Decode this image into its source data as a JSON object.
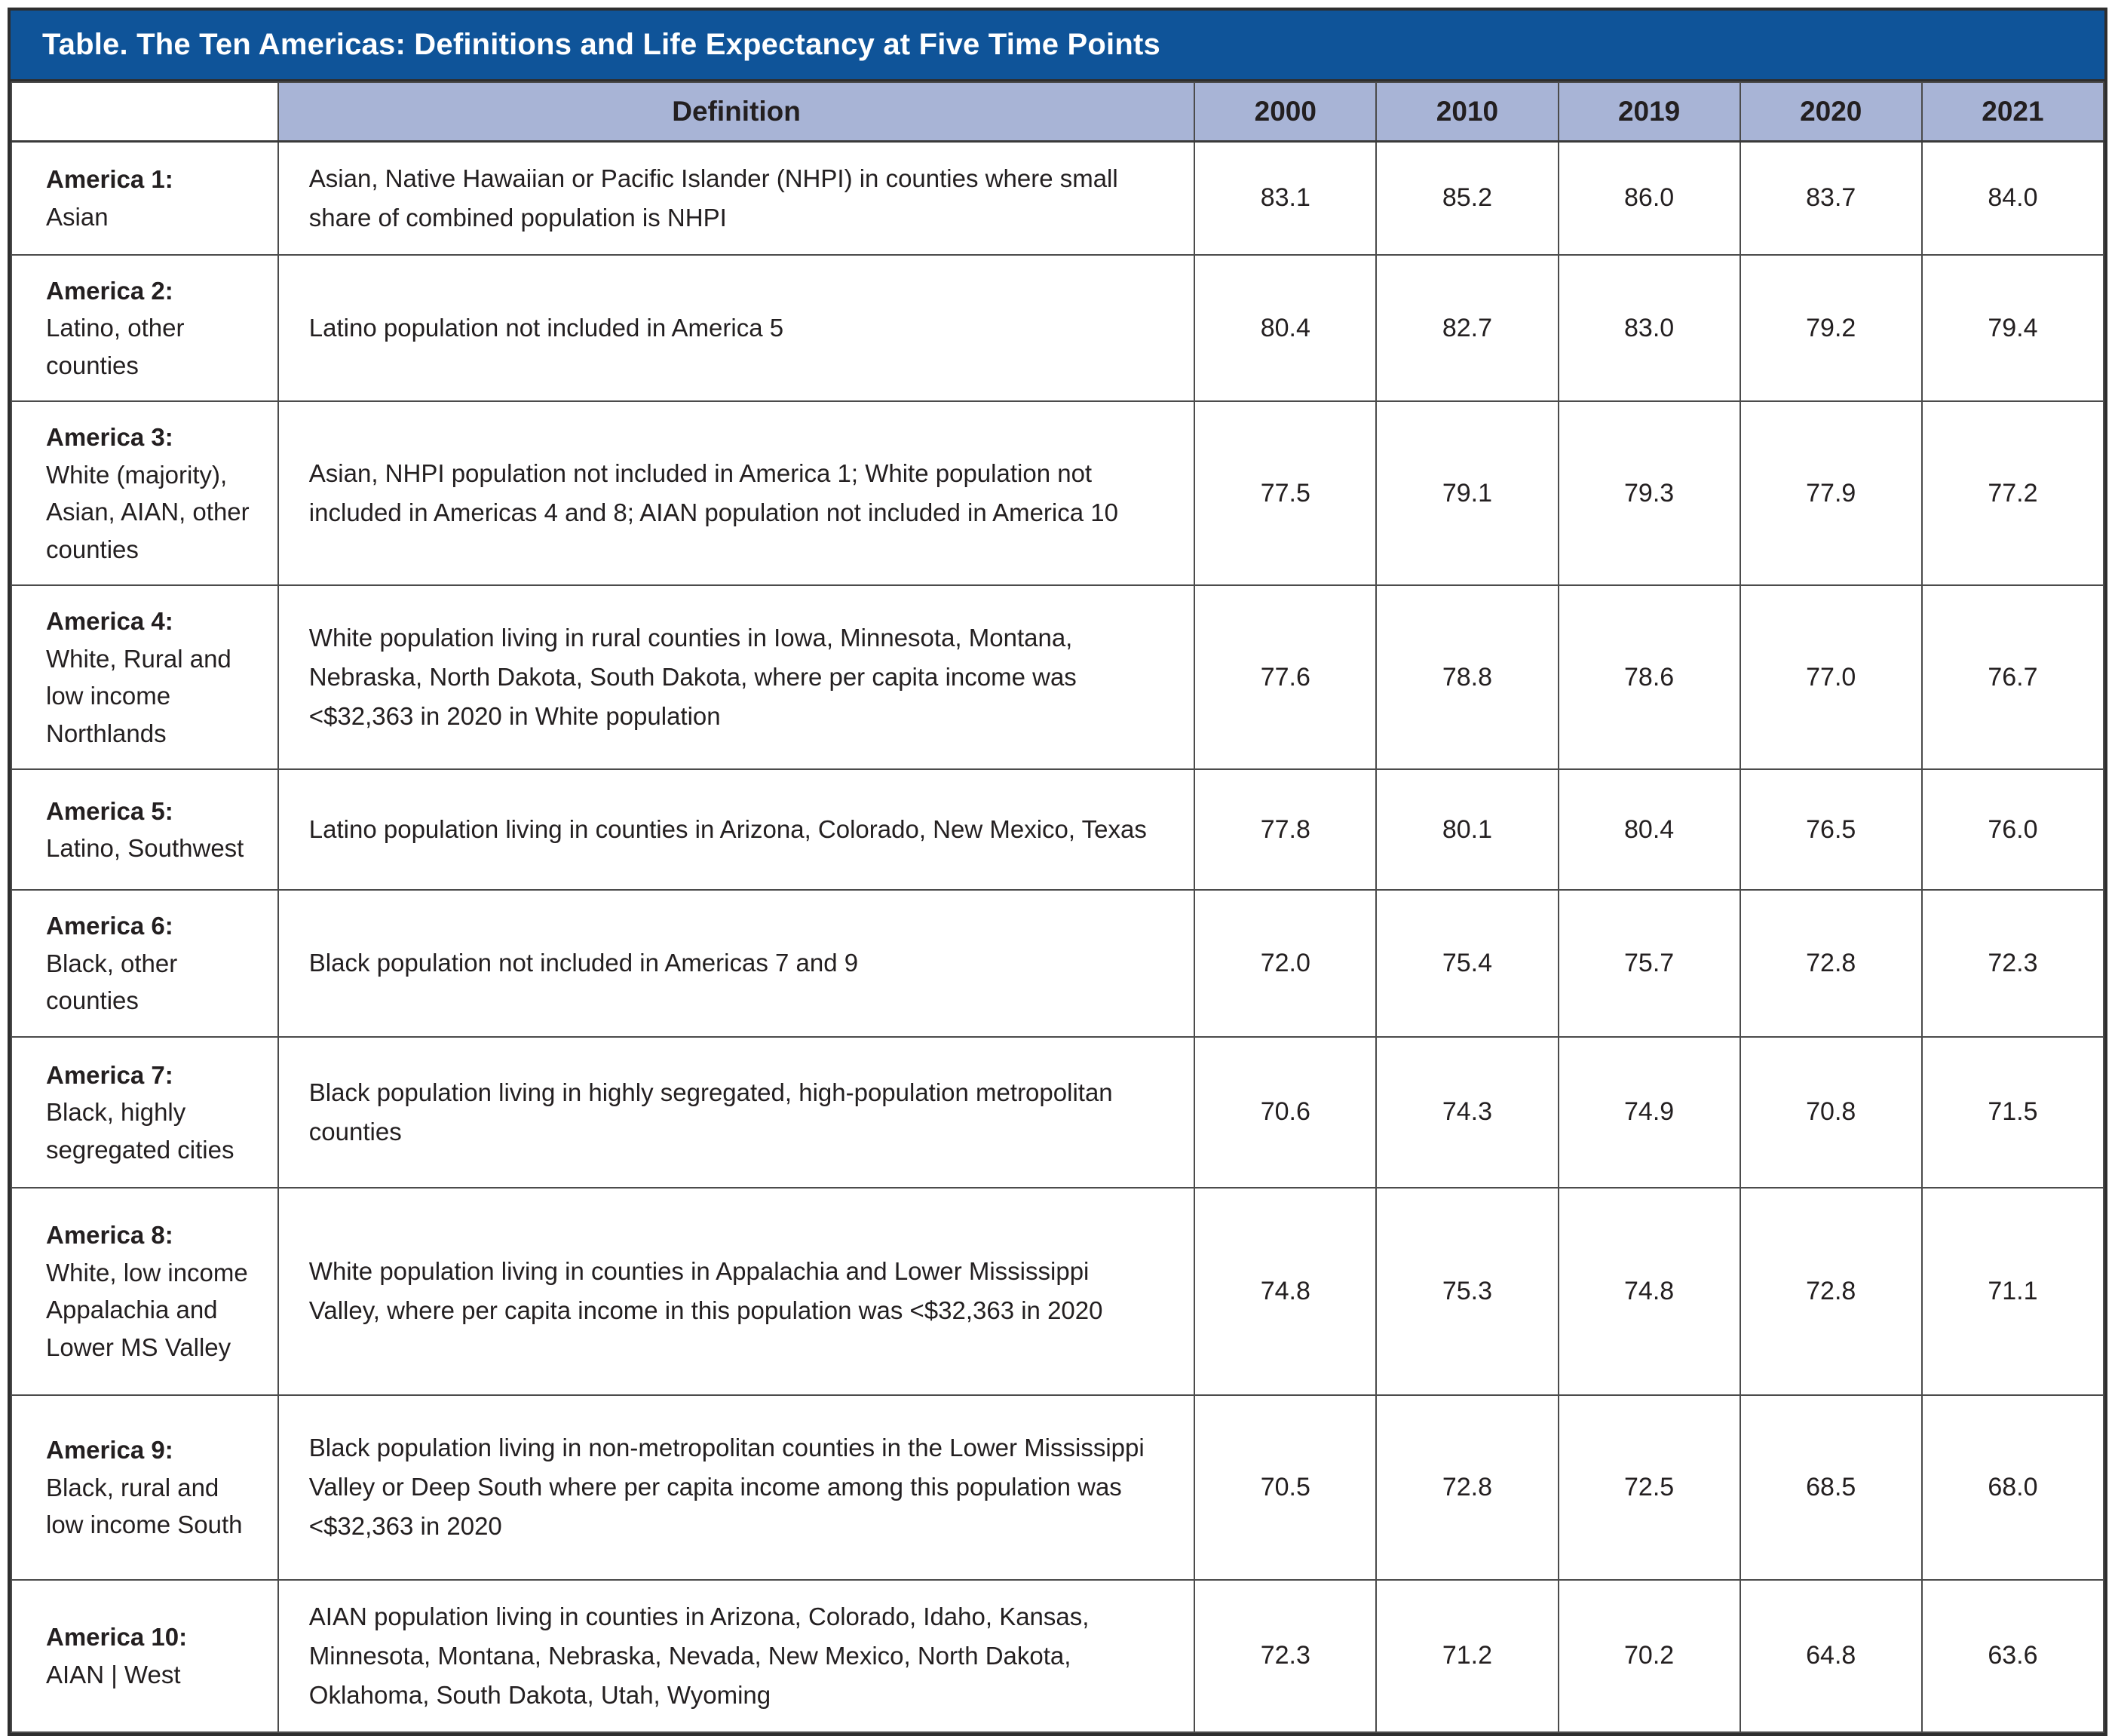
{
  "title": "Table. The Ten Americas: Definitions and Life Expectancy at Five Time Points",
  "header": {
    "definition_label": "Definition",
    "years": [
      "2000",
      "2010",
      "2019",
      "2020",
      "2021"
    ]
  },
  "colors": {
    "title_bg": "#0f5499",
    "title_text": "#ffffff",
    "header_bg": "#a8b4d6",
    "body_text": "#231f20",
    "border": "#4b4b4b"
  },
  "rows": [
    {
      "name_bold": "America 1:",
      "name_rest": "Asian",
      "definition": "Asian, Native Hawaiian or Pacific Islander (NHPI) in counties where small share of combined population is NHPI",
      "values": [
        "83.1",
        "85.2",
        "86.0",
        "83.7",
        "84.0"
      ]
    },
    {
      "name_bold": "America 2:",
      "name_rest": "Latino, other counties",
      "definition": "Latino population not included in America 5",
      "values": [
        "80.4",
        "82.7",
        "83.0",
        "79.2",
        "79.4"
      ]
    },
    {
      "name_bold": "America 3:",
      "name_rest": "White (majority), Asian, AIAN, other counties",
      "definition": "Asian, NHPI population not included in America 1; White population not included in Americas 4 and 8; AIAN population not included in America 10",
      "values": [
        "77.5",
        "79.1",
        "79.3",
        "77.9",
        "77.2"
      ]
    },
    {
      "name_bold": "America 4:",
      "name_rest": "White, Rural and low income Northlands",
      "definition": "White population living in rural counties in Iowa, Minnesota, Montana, Nebraska, North Dakota, South Dakota, where per capita income was <$32,363 in 2020 in White population",
      "values": [
        "77.6",
        "78.8",
        "78.6",
        "77.0",
        "76.7"
      ]
    },
    {
      "name_bold": "America 5:",
      "name_rest": "Latino, Southwest",
      "definition": "Latino population living in counties in Arizona, Colorado, New Mexico, Texas",
      "values": [
        "77.8",
        "80.1",
        "80.4",
        "76.5",
        "76.0"
      ]
    },
    {
      "name_bold": "America 6:",
      "name_rest": "Black, other counties",
      "definition": "Black population not included in Americas 7 and 9",
      "values": [
        "72.0",
        "75.4",
        "75.7",
        "72.8",
        "72.3"
      ]
    },
    {
      "name_bold": "America 7:",
      "name_rest": "Black, highly segregated cities",
      "definition": "Black population living in highly segregated, high-population metropolitan counties",
      "values": [
        "70.6",
        "74.3",
        "74.9",
        "70.8",
        "71.5"
      ]
    },
    {
      "name_bold": "America 8:",
      "name_rest": "White, low income Appalachia and Lower MS Valley",
      "definition": "White population living in counties in Appalachia and Lower Mississippi Valley, where per capita income in this population was <$32,363 in 2020",
      "values": [
        "74.8",
        "75.3",
        "74.8",
        "72.8",
        "71.1"
      ]
    },
    {
      "name_bold": "America 9:",
      "name_rest": "Black, rural and low income South",
      "definition": "Black population living in non-metropolitan counties in the Lower Mississippi Valley or Deep South where per capita income among this population was <$32,363 in 2020",
      "values": [
        "70.5",
        "72.8",
        "72.5",
        "68.5",
        "68.0"
      ]
    },
    {
      "name_bold": "America 10:",
      "name_rest": "AIAN | West",
      "definition": "AIAN population living in counties in Arizona, Colorado, Idaho, Kansas, Minnesota, Montana, Nebraska, Nevada, New Mexico, North Dakota, Oklahoma, South Dakota, Utah, Wyoming",
      "values": [
        "72.3",
        "71.2",
        "70.2",
        "64.8",
        "63.6"
      ]
    }
  ]
}
